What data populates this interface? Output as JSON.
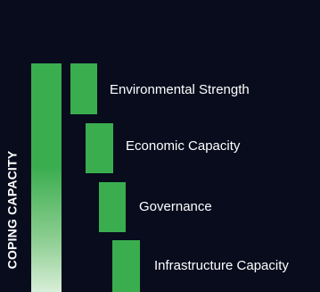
{
  "diagram": {
    "main_label": "COPING CAPACITY",
    "main_bar_color": "#3aad4f",
    "background_color": "#080c1d",
    "components": [
      {
        "label": "Environmental Strength"
      },
      {
        "label": "Economic Capacity"
      },
      {
        "label": "Governance"
      },
      {
        "label": "Infrastructure Capacity"
      }
    ]
  }
}
